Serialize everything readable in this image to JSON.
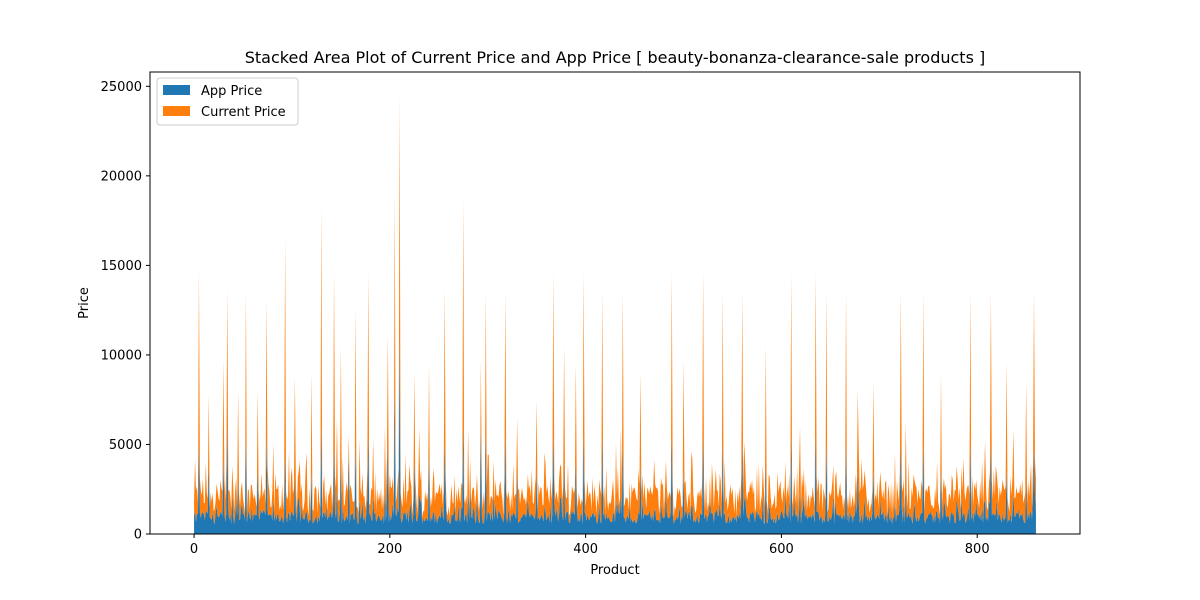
{
  "chart_data": {
    "type": "area",
    "stacked": true,
    "title": "Stacked Area Plot of Current Price and App Price [ beauty-bonanza-clearance-sale products ]",
    "xlabel": "Product",
    "ylabel": "Price",
    "xlim": [
      -45,
      905
    ],
    "ylim": [
      0,
      25800
    ],
    "x_ticks": [
      0,
      200,
      400,
      600,
      800
    ],
    "y_ticks": [
      0,
      5000,
      10000,
      15000,
      20000,
      25000
    ],
    "grid": false,
    "legend_position": "upper-left",
    "series": [
      {
        "name": "App Price",
        "color": "#1f77b4",
        "peaks": [
          [
            5,
            5000
          ],
          [
            15,
            3800
          ],
          [
            30,
            4200
          ],
          [
            34,
            6000
          ],
          [
            45,
            3000
          ],
          [
            53,
            5500
          ],
          [
            65,
            3500
          ],
          [
            74,
            5500
          ],
          [
            93,
            4500
          ],
          [
            103,
            3200
          ],
          [
            120,
            3500
          ],
          [
            130,
            6000
          ],
          [
            143,
            4800
          ],
          [
            150,
            4000
          ],
          [
            158,
            4500
          ],
          [
            165,
            5000
          ],
          [
            178,
            5500
          ],
          [
            198,
            5000
          ],
          [
            205,
            8000
          ],
          [
            210,
            11000
          ],
          [
            225,
            4000
          ],
          [
            240,
            4500
          ],
          [
            256,
            5000
          ],
          [
            275,
            6000
          ],
          [
            293,
            6000
          ],
          [
            298,
            5500
          ],
          [
            318,
            5500
          ],
          [
            330,
            3500
          ],
          [
            350,
            3500
          ],
          [
            367,
            5500
          ],
          [
            378,
            4000
          ],
          [
            390,
            4000
          ],
          [
            398,
            5500
          ],
          [
            417,
            5500
          ],
          [
            438,
            5000
          ],
          [
            456,
            3800
          ],
          [
            488,
            5500
          ],
          [
            500,
            3500
          ],
          [
            520,
            5500
          ],
          [
            540,
            5000
          ],
          [
            560,
            5000
          ],
          [
            584,
            3800
          ],
          [
            610,
            5500
          ],
          [
            635,
            5500
          ],
          [
            646,
            5000
          ],
          [
            666,
            5000
          ],
          [
            678,
            3500
          ],
          [
            694,
            3500
          ],
          [
            722,
            5000
          ],
          [
            745,
            5000
          ],
          [
            763,
            3500
          ],
          [
            793,
            5000
          ],
          [
            814,
            5000
          ],
          [
            830,
            3500
          ],
          [
            850,
            3000
          ],
          [
            858,
            4800
          ]
        ]
      },
      {
        "name": "Current Price",
        "color": "#ff7f0e",
        "peaks": [
          [
            5,
            9700
          ],
          [
            15,
            4000
          ],
          [
            30,
            5500
          ],
          [
            34,
            7600
          ],
          [
            45,
            5000
          ],
          [
            53,
            8100
          ],
          [
            65,
            4500
          ],
          [
            74,
            7600
          ],
          [
            93,
            12000
          ],
          [
            103,
            5600
          ],
          [
            120,
            5500
          ],
          [
            130,
            12300
          ],
          [
            143,
            9800
          ],
          [
            150,
            6500
          ],
          [
            158,
            1000
          ],
          [
            165,
            7600
          ],
          [
            178,
            9100
          ],
          [
            198,
            6100
          ],
          [
            205,
            11000
          ],
          [
            210,
            13500
          ],
          [
            225,
            5000
          ],
          [
            240,
            5000
          ],
          [
            256,
            8700
          ],
          [
            275,
            12700
          ],
          [
            293,
            3700
          ],
          [
            298,
            8000
          ],
          [
            318,
            8000
          ],
          [
            330,
            3000
          ],
          [
            350,
            4000
          ],
          [
            367,
            9100
          ],
          [
            378,
            6500
          ],
          [
            390,
            5500
          ],
          [
            398,
            9100
          ],
          [
            417,
            8100
          ],
          [
            438,
            8500
          ],
          [
            456,
            5200
          ],
          [
            488,
            9100
          ],
          [
            500,
            6200
          ],
          [
            520,
            9100
          ],
          [
            540,
            8500
          ],
          [
            560,
            8500
          ],
          [
            584,
            6700
          ],
          [
            610,
            9100
          ],
          [
            635,
            9100
          ],
          [
            646,
            8500
          ],
          [
            666,
            8500
          ],
          [
            678,
            4500
          ],
          [
            694,
            5000
          ],
          [
            722,
            8500
          ],
          [
            745,
            8500
          ],
          [
            763,
            5500
          ],
          [
            793,
            8500
          ],
          [
            814,
            8500
          ],
          [
            830,
            6100
          ],
          [
            850,
            5500
          ],
          [
            858,
            8700
          ]
        ]
      }
    ],
    "n_points": 861
  }
}
